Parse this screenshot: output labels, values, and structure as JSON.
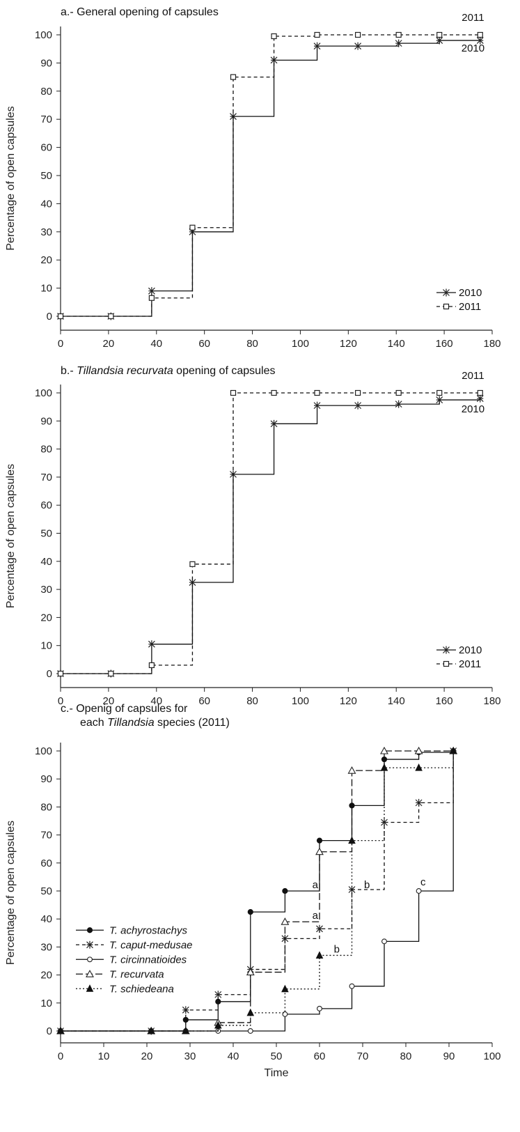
{
  "chart_data": [
    {
      "type": "line",
      "step": true,
      "title": "a.- General opening of capsules",
      "title_italic": "",
      "title_post": "",
      "xlabel": "",
      "ylabel": "Percentage of open capsules",
      "xlim": [
        0,
        180
      ],
      "ylim": [
        0,
        100
      ],
      "x_ticks": [
        0,
        20,
        40,
        60,
        80,
        100,
        120,
        140,
        160,
        180
      ],
      "y_ticks": [
        0,
        10,
        20,
        30,
        40,
        50,
        60,
        70,
        80,
        90,
        100
      ],
      "legend_position": "bottom-right",
      "series": [
        {
          "name": "2010",
          "marker": "asterisk",
          "line": "solid",
          "x": [
            0,
            21,
            38,
            55,
            72,
            89,
            107,
            124,
            141,
            158,
            175
          ],
          "y": [
            0,
            0,
            9,
            30,
            71,
            91,
            96,
            96,
            97,
            98,
            98
          ]
        },
        {
          "name": "2011",
          "marker": "open-square",
          "line": "dashed",
          "x": [
            0,
            21,
            38,
            55,
            72,
            89,
            107,
            124,
            141,
            158,
            175
          ],
          "y": [
            0,
            0,
            6.5,
            31.5,
            85,
            99.5,
            100,
            100,
            100,
            100,
            100
          ]
        }
      ],
      "annotations": [
        {
          "text": "2011",
          "x": 172,
          "y": 105
        },
        {
          "text": "2010",
          "x": 172,
          "y": 94
        }
      ]
    },
    {
      "type": "line",
      "step": true,
      "title": "b.- ",
      "title_italic": "Tillandsia recurvata",
      "title_post": " opening of capsules",
      "xlabel": "",
      "ylabel": "Percentage of open capsules",
      "xlim": [
        0,
        180
      ],
      "ylim": [
        0,
        100
      ],
      "x_ticks": [
        0,
        20,
        40,
        60,
        80,
        100,
        120,
        140,
        160,
        180
      ],
      "y_ticks": [
        0,
        10,
        20,
        30,
        40,
        50,
        60,
        70,
        80,
        90,
        100
      ],
      "legend_position": "bottom-right",
      "series": [
        {
          "name": "2010",
          "marker": "asterisk",
          "line": "solid",
          "x": [
            0,
            21,
            38,
            55,
            72,
            89,
            107,
            124,
            141,
            158,
            175
          ],
          "y": [
            0,
            0,
            10.5,
            32.5,
            71,
            89,
            95.5,
            95.5,
            96,
            97.5,
            98
          ]
        },
        {
          "name": "2011",
          "marker": "open-square",
          "line": "dashed",
          "x": [
            0,
            21,
            38,
            55,
            72,
            89,
            107,
            124,
            141,
            158,
            175
          ],
          "y": [
            0,
            0,
            3,
            39,
            100,
            100,
            100,
            100,
            100,
            100,
            100
          ]
        }
      ],
      "annotations": [
        {
          "text": "2011",
          "x": 172,
          "y": 105
        },
        {
          "text": "2010",
          "x": 172,
          "y": 93
        }
      ]
    },
    {
      "type": "line",
      "step": true,
      "title": "c.- Openig of capsules for",
      "title2_pre": "each ",
      "title2_italic": "Tillandsia",
      "title2_post": " species (2011)",
      "xlabel": "Time",
      "ylabel": "Percentage of open capsules",
      "xlim": [
        0,
        100
      ],
      "ylim": [
        0,
        100
      ],
      "x_ticks": [
        0,
        10,
        20,
        30,
        40,
        50,
        60,
        70,
        80,
        90,
        100
      ],
      "y_ticks": [
        0,
        10,
        20,
        30,
        40,
        50,
        60,
        70,
        80,
        90,
        100
      ],
      "legend_position": "middle-left",
      "series": [
        {
          "name": "T. achyrostachys",
          "marker": "filled-circle",
          "line": "solid",
          "x": [
            0,
            21,
            29,
            36.5,
            44,
            52,
            60,
            67.5,
            75,
            83,
            91
          ],
          "y": [
            0,
            0,
            4,
            10.5,
            42.5,
            50,
            68,
            80.5,
            97,
            99.5,
            100
          ]
        },
        {
          "name": "T. caput-medusae",
          "marker": "asterisk",
          "line": "dashed",
          "x": [
            0,
            21,
            29,
            36.5,
            44,
            52,
            60,
            67.5,
            75,
            83,
            91
          ],
          "y": [
            0,
            0,
            7.5,
            13,
            22,
            33,
            36.5,
            50.5,
            74.5,
            81.5,
            100
          ]
        },
        {
          "name": "T. circinnatioides",
          "marker": "open-circle",
          "line": "solid",
          "x": [
            0,
            21,
            29,
            36.5,
            44,
            52,
            60,
            67.5,
            75,
            83,
            91
          ],
          "y": [
            0,
            0,
            0,
            0,
            0,
            6,
            8,
            16,
            32,
            50,
            100
          ]
        },
        {
          "name": "T. recurvata",
          "marker": "open-triangle",
          "line": "longdash",
          "x": [
            0,
            21,
            29,
            36.5,
            44,
            52,
            60,
            67.5,
            75,
            83,
            91
          ],
          "y": [
            0,
            0,
            0,
            3,
            21,
            39,
            64,
            93,
            100,
            100,
            100
          ]
        },
        {
          "name": "T. schiedeana",
          "marker": "filled-triangle",
          "line": "dotted",
          "x": [
            0,
            21,
            29,
            36.5,
            44,
            52,
            60,
            67.5,
            75,
            83,
            91
          ],
          "y": [
            0,
            0,
            0,
            2,
            6.5,
            15,
            27,
            68,
            94,
            94,
            100
          ]
        }
      ],
      "annotations": [
        {
          "text": "a",
          "x": 59,
          "y": 51
        },
        {
          "text": "a",
          "x": 59,
          "y": 40
        },
        {
          "text": "b",
          "x": 71,
          "y": 51
        },
        {
          "text": "b",
          "x": 64,
          "y": 28
        },
        {
          "text": "c",
          "x": 84,
          "y": 52
        }
      ]
    }
  ]
}
